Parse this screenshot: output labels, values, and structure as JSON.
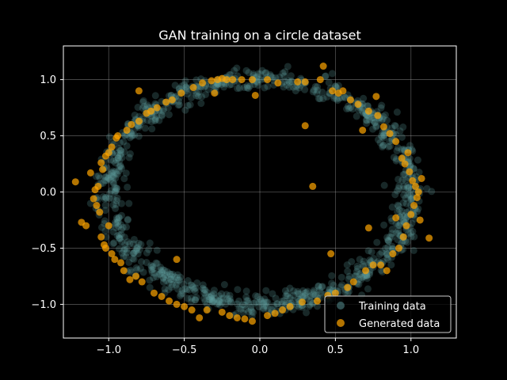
{
  "chart_data": {
    "type": "scatter",
    "title": "GAN training on a circle dataset",
    "xlabel": "",
    "ylabel": "",
    "xlim": [
      -1.3,
      1.3
    ],
    "ylim": [
      -1.3,
      1.3
    ],
    "grid": true,
    "legend_position": "bottom-right",
    "background": "#000000",
    "x_ticks": [
      -1.0,
      -0.5,
      0.0,
      0.5,
      1.0
    ],
    "x_tick_labels": [
      "−1.0",
      "−0.5",
      "0.0",
      "0.5",
      "1.0"
    ],
    "y_ticks": [
      -1.0,
      -0.5,
      0.0,
      0.5,
      1.0
    ],
    "y_tick_labels": [
      "−1.0",
      "−0.5",
      "0.0",
      "0.5",
      "1.0"
    ],
    "series": [
      {
        "name": "Training data",
        "color": "#5f9ea0",
        "alpha": 0.25,
        "distribution": "noisy unit circle",
        "radius": 1.0,
        "noise_std": 0.05,
        "count": 1000
      },
      {
        "name": "Generated data",
        "color": "#ffa500",
        "alpha": 0.7,
        "points": [
          [
            -1.22,
            0.09
          ],
          [
            -1.18,
            -0.27
          ],
          [
            -1.15,
            -0.3
          ],
          [
            -1.12,
            0.17
          ],
          [
            -1.1,
            -0.06
          ],
          [
            -1.09,
            0.02
          ],
          [
            -1.08,
            -0.12
          ],
          [
            -1.07,
            0.05
          ],
          [
            -1.06,
            -0.18
          ],
          [
            -1.05,
            0.26
          ],
          [
            -1.05,
            -0.4
          ],
          [
            -1.04,
            0.2
          ],
          [
            -1.03,
            -0.47
          ],
          [
            -1.02,
            0.32
          ],
          [
            -1.02,
            -0.5
          ],
          [
            -1.0,
            0.35
          ],
          [
            -1.0,
            -0.3
          ],
          [
            -0.98,
            -0.55
          ],
          [
            -0.98,
            0.4
          ],
          [
            -0.96,
            -0.6
          ],
          [
            -0.95,
            0.48
          ],
          [
            -0.94,
            0.5
          ],
          [
            -0.92,
            -0.63
          ],
          [
            -0.9,
            -0.7
          ],
          [
            -0.88,
            0.55
          ],
          [
            -0.86,
            -0.78
          ],
          [
            -0.85,
            0.6
          ],
          [
            -0.82,
            -0.75
          ],
          [
            -0.8,
            0.63
          ],
          [
            -0.78,
            -0.8
          ],
          [
            -0.75,
            0.7
          ],
          [
            -0.72,
            0.72
          ],
          [
            -0.7,
            -0.9
          ],
          [
            -0.68,
            0.75
          ],
          [
            -0.65,
            -0.93
          ],
          [
            -0.62,
            0.8
          ],
          [
            -0.6,
            -0.97
          ],
          [
            -0.58,
            0.82
          ],
          [
            -0.55,
            -1.0
          ],
          [
            -0.55,
            -0.6
          ],
          [
            -0.52,
            0.88
          ],
          [
            -0.5,
            -1.02
          ],
          [
            -0.45,
            -1.05
          ],
          [
            -0.44,
            0.93
          ],
          [
            -0.4,
            -1.12
          ],
          [
            -0.38,
            0.97
          ],
          [
            -0.35,
            -1.05
          ],
          [
            -0.32,
            0.99
          ],
          [
            -0.28,
            1.0
          ],
          [
            -0.25,
            -1.07
          ],
          [
            -0.25,
            1.01
          ],
          [
            -0.22,
            1.0
          ],
          [
            -0.2,
            -1.1
          ],
          [
            -0.18,
            1.0
          ],
          [
            -0.15,
            -1.12
          ],
          [
            -0.12,
            1.0
          ],
          [
            -0.1,
            -1.13
          ],
          [
            -0.05,
            -1.15
          ],
          [
            -0.05,
            1.0
          ],
          [
            -0.03,
            0.86
          ],
          [
            0.05,
            1.0
          ],
          [
            0.05,
            -1.1
          ],
          [
            0.1,
            -1.08
          ],
          [
            0.12,
            0.97
          ],
          [
            0.15,
            -1.05
          ],
          [
            0.2,
            -1.02
          ],
          [
            0.25,
            0.98
          ],
          [
            0.28,
            -0.98
          ],
          [
            0.3,
            0.98
          ],
          [
            0.3,
            0.59
          ],
          [
            0.35,
            0.05
          ],
          [
            0.38,
            -0.97
          ],
          [
            0.4,
            1.0
          ],
          [
            0.42,
            1.12
          ],
          [
            0.45,
            -0.92
          ],
          [
            0.47,
            -0.55
          ],
          [
            0.48,
            0.9
          ],
          [
            0.5,
            -0.9
          ],
          [
            0.52,
            0.88
          ],
          [
            0.55,
            0.9
          ],
          [
            0.58,
            -0.85
          ],
          [
            0.6,
            0.82
          ],
          [
            0.62,
            -0.8
          ],
          [
            0.65,
            0.78
          ],
          [
            0.68,
            0.55
          ],
          [
            0.7,
            -0.7
          ],
          [
            0.72,
            0.72
          ],
          [
            0.75,
            -0.65
          ],
          [
            0.78,
            0.68
          ],
          [
            0.8,
            -0.65
          ],
          [
            0.82,
            0.58
          ],
          [
            0.84,
            -0.7
          ],
          [
            0.86,
            0.52
          ],
          [
            0.88,
            -0.55
          ],
          [
            0.9,
            0.45
          ],
          [
            0.92,
            -0.5
          ],
          [
            0.94,
            0.3
          ],
          [
            0.95,
            -0.4
          ],
          [
            0.96,
            0.25
          ],
          [
            0.97,
            -0.3
          ],
          [
            0.98,
            0.35
          ],
          [
            0.99,
            0.18
          ],
          [
            1.0,
            -0.2
          ],
          [
            1.01,
            0.1
          ],
          [
            1.02,
            -0.12
          ],
          [
            1.03,
            0.05
          ],
          [
            1.04,
            -0.05
          ],
          [
            1.05,
            0.0
          ],
          [
            1.06,
            -0.25
          ],
          [
            1.07,
            0.12
          ],
          [
            1.12,
            -0.41
          ],
          [
            0.72,
            -0.32
          ],
          [
            0.9,
            -0.23
          ],
          [
            0.77,
            0.85
          ],
          [
            -0.8,
            0.9
          ],
          [
            -0.3,
            0.88
          ]
        ]
      }
    ]
  }
}
